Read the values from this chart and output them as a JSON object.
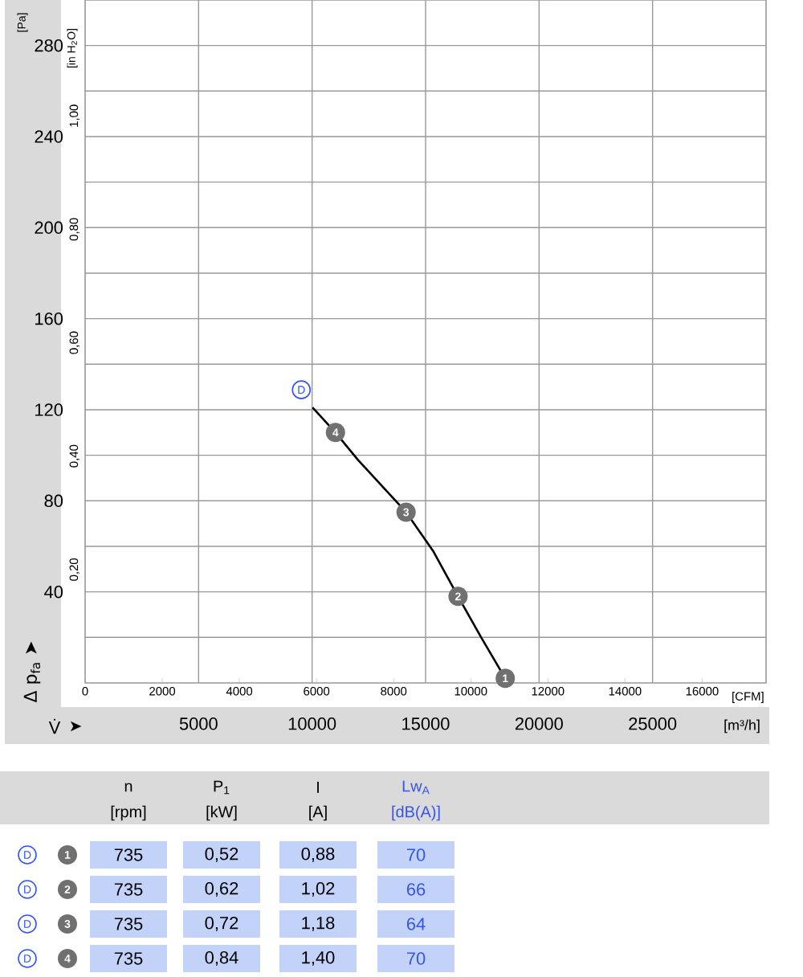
{
  "chart_data": {
    "type": "line",
    "ylabel": "[Pa]",
    "y2label": "[in H$_{2}$O]",
    "xlabel": "[m³/h]",
    "x2label": "[CFM]",
    "xlim": [
      0,
      30000
    ],
    "xticks": [
      5000,
      10000,
      15000,
      20000,
      25000
    ],
    "x2lim": [
      0,
      17657
    ],
    "x2ticks": [
      0,
      2000,
      4000,
      6000,
      8000,
      10000,
      12000,
      14000,
      16000
    ],
    "ylim": [
      0,
      300
    ],
    "yticks": [
      {
        "value": 20,
        "label": null
      },
      40,
      {
        "value": 60,
        "label": null
      },
      80,
      {
        "value": 100,
        "label": null
      },
      120,
      {
        "value": 140,
        "label": null
      },
      160,
      {
        "value": 180,
        "label": null
      },
      200,
      {
        "value": 220,
        "label": null
      },
      240,
      {
        "value": 260,
        "label": null
      },
      280
    ],
    "y2lim": [
      0,
      1.2044
    ],
    "y2ticks": [
      {
        "value": 0.2,
        "label": "0,20"
      },
      {
        "value": 0.4,
        "label": "0,40"
      },
      {
        "value": 0.6,
        "label": "0,60"
      },
      {
        "value": 0.8,
        "label": "0,80"
      },
      {
        "value": 1.0,
        "label": "1,00"
      }
    ],
    "grid": true,
    "series": [
      {
        "color": "#000000",
        "x": [
          10020,
          11030,
          12020,
          14140,
          15330,
          16430,
          17450,
          18510
        ],
        "values": [
          121,
          110,
          98,
          75,
          58,
          38,
          20,
          2
        ]
      }
    ],
    "annotations": [
      {
        "text": "D",
        "x": 10020,
        "y": 121
      },
      {
        "text": "1",
        "x": 18510,
        "y": 2
      },
      {
        "text": "2",
        "x": 16430,
        "y": 38
      },
      {
        "text": "3",
        "x": 14140,
        "y": 75
      },
      {
        "text": "4",
        "x": 11030,
        "y": 110
      },
      "Δ p$_{fa}$ ➤",
      "V̇",
      "➤",
      "n",
      "[rpm]",
      "P$_{1}$",
      "[kW]",
      "I",
      "[A]",
      "Lw$_{A}$",
      "[dB(A)]",
      "D",
      "1",
      "735",
      "0,52",
      "0,88",
      "70",
      "D",
      "2",
      "735",
      "0,62",
      "1,02",
      "66",
      "D",
      "3",
      "735",
      "0,72",
      "1,18",
      "64",
      "D",
      "4",
      "735",
      "0,84",
      "1,40",
      "70"
    ]
  }
}
